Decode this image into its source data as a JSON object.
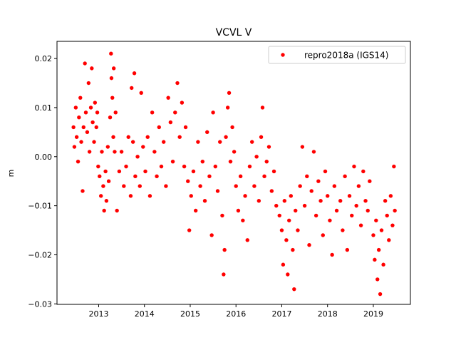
{
  "chart_data": {
    "type": "scatter",
    "title": "VCVL V",
    "xlabel": "",
    "ylabel": "m",
    "xlim": [
      2012.09,
      2019.81
    ],
    "ylim": [
      -0.0301,
      0.0235
    ],
    "xticks": [
      2013,
      2014,
      2015,
      2016,
      2017,
      2018,
      2019
    ],
    "xtick_labels": [
      "2013",
      "2014",
      "2015",
      "2016",
      "2017",
      "2018",
      "2019"
    ],
    "yticks": [
      0.02,
      0.01,
      0.0,
      -0.01,
      -0.02,
      -0.03
    ],
    "ytick_labels": [
      "0.02",
      "0.01",
      "0.00",
      "−0.01",
      "−0.02",
      "−0.03"
    ],
    "grid": false,
    "legend": {
      "placement": "top-right",
      "entries": [
        "repro2018a (IGS14)"
      ]
    },
    "series": [
      {
        "name": "repro2018a (IGS14)",
        "color": "#ff0000",
        "marker": "circle",
        "points": [
          [
            2012.45,
            0.006
          ],
          [
            2012.47,
            0.002
          ],
          [
            2012.5,
            0.01
          ],
          [
            2012.52,
            0.004
          ],
          [
            2012.55,
            -0.001
          ],
          [
            2012.57,
            0.008
          ],
          [
            2012.6,
            0.012
          ],
          [
            2012.62,
            0.003
          ],
          [
            2012.65,
            -0.007
          ],
          [
            2012.67,
            0.006
          ],
          [
            2012.7,
            0.019
          ],
          [
            2012.72,
            0.009
          ],
          [
            2012.75,
            0.005
          ],
          [
            2012.78,
            0.015
          ],
          [
            2012.8,
            0.001
          ],
          [
            2012.83,
            0.01
          ],
          [
            2012.85,
            0.018
          ],
          [
            2012.87,
            0.007
          ],
          [
            2012.9,
            0.003
          ],
          [
            2012.92,
            0.011
          ],
          [
            2012.95,
            0.006
          ],
          [
            2012.97,
            0.009
          ],
          [
            2012.99,
            -0.002
          ],
          [
            2013.02,
            -0.004
          ],
          [
            2013.05,
            -0.008
          ],
          [
            2013.07,
            0.001
          ],
          [
            2013.1,
            -0.006
          ],
          [
            2013.12,
            -0.011
          ],
          [
            2013.15,
            -0.003
          ],
          [
            2013.17,
            -0.009
          ],
          [
            2013.2,
            0.002
          ],
          [
            2013.22,
            -0.005
          ],
          [
            2013.25,
            0.008
          ],
          [
            2013.27,
            0.021
          ],
          [
            2013.28,
            0.016
          ],
          [
            2013.3,
            0.012
          ],
          [
            2013.32,
            0.004
          ],
          [
            2013.33,
            0.018
          ],
          [
            2013.35,
            0.001
          ],
          [
            2013.37,
            0.009
          ],
          [
            2013.4,
            -0.011
          ],
          [
            2013.45,
            -0.003
          ],
          [
            2013.5,
            0.001
          ],
          [
            2013.55,
            -0.006
          ],
          [
            2013.6,
            -0.002
          ],
          [
            2013.65,
            0.004
          ],
          [
            2013.7,
            -0.008
          ],
          [
            2013.72,
            0.014
          ],
          [
            2013.75,
            0.003
          ],
          [
            2013.78,
            0.017
          ],
          [
            2013.8,
            -0.004
          ],
          [
            2013.85,
            0.0
          ],
          [
            2013.9,
            -0.006
          ],
          [
            2013.93,
            0.013
          ],
          [
            2013.97,
            0.002
          ],
          [
            2014.02,
            -0.003
          ],
          [
            2014.07,
            0.004
          ],
          [
            2014.12,
            -0.008
          ],
          [
            2014.17,
            0.009
          ],
          [
            2014.22,
            0.001
          ],
          [
            2014.27,
            -0.004
          ],
          [
            2014.32,
            0.006
          ],
          [
            2014.37,
            -0.002
          ],
          [
            2014.42,
            0.003
          ],
          [
            2014.47,
            -0.006
          ],
          [
            2014.52,
            0.012
          ],
          [
            2014.57,
            0.007
          ],
          [
            2014.62,
            -0.001
          ],
          [
            2014.67,
            0.009
          ],
          [
            2014.72,
            0.015
          ],
          [
            2014.77,
            0.004
          ],
          [
            2014.82,
            0.011
          ],
          [
            2014.87,
            -0.002
          ],
          [
            2014.9,
            0.006
          ],
          [
            2014.95,
            -0.005
          ],
          [
            2014.98,
            -0.015
          ],
          [
            2015.02,
            -0.008
          ],
          [
            2015.07,
            -0.003
          ],
          [
            2015.12,
            -0.011
          ],
          [
            2015.17,
            0.003
          ],
          [
            2015.22,
            -0.006
          ],
          [
            2015.27,
            -0.001
          ],
          [
            2015.32,
            -0.009
          ],
          [
            2015.37,
            0.005
          ],
          [
            2015.42,
            -0.004
          ],
          [
            2015.47,
            -0.016
          ],
          [
            2015.5,
            0.009
          ],
          [
            2015.55,
            -0.002
          ],
          [
            2015.6,
            -0.007
          ],
          [
            2015.65,
            0.003
          ],
          [
            2015.7,
            -0.012
          ],
          [
            2015.73,
            -0.024
          ],
          [
            2015.75,
            -0.019
          ],
          [
            2015.78,
            0.004
          ],
          [
            2015.82,
            0.01
          ],
          [
            2015.85,
            0.013
          ],
          [
            2015.88,
            -0.001
          ],
          [
            2015.92,
            0.006
          ],
          [
            2015.96,
            0.001
          ],
          [
            2016.0,
            -0.006
          ],
          [
            2016.05,
            -0.011
          ],
          [
            2016.1,
            -0.004
          ],
          [
            2016.15,
            -0.013
          ],
          [
            2016.2,
            -0.008
          ],
          [
            2016.25,
            -0.017
          ],
          [
            2016.3,
            -0.002
          ],
          [
            2016.35,
            0.003
          ],
          [
            2016.4,
            -0.006
          ],
          [
            2016.45,
            0.0
          ],
          [
            2016.5,
            -0.009
          ],
          [
            2016.55,
            0.004
          ],
          [
            2016.58,
            0.01
          ],
          [
            2016.62,
            -0.004
          ],
          [
            2016.67,
            -0.001
          ],
          [
            2016.72,
            0.002
          ],
          [
            2016.78,
            -0.007
          ],
          [
            2016.83,
            -0.003
          ],
          [
            2016.88,
            -0.01
          ],
          [
            2016.95,
            -0.012
          ],
          [
            2017.0,
            -0.015
          ],
          [
            2017.03,
            -0.022
          ],
          [
            2017.06,
            -0.009
          ],
          [
            2017.1,
            -0.017
          ],
          [
            2017.13,
            -0.024
          ],
          [
            2017.16,
            -0.013
          ],
          [
            2017.2,
            -0.008
          ],
          [
            2017.24,
            -0.019
          ],
          [
            2017.27,
            -0.027
          ],
          [
            2017.3,
            -0.011
          ],
          [
            2017.35,
            -0.015
          ],
          [
            2017.4,
            -0.006
          ],
          [
            2017.45,
            0.002
          ],
          [
            2017.5,
            -0.01
          ],
          [
            2017.55,
            -0.004
          ],
          [
            2017.6,
            -0.018
          ],
          [
            2017.65,
            -0.007
          ],
          [
            2017.7,
            0.001
          ],
          [
            2017.75,
            -0.012
          ],
          [
            2017.8,
            -0.005
          ],
          [
            2017.85,
            -0.009
          ],
          [
            2017.9,
            -0.016
          ],
          [
            2017.95,
            -0.003
          ],
          [
            2018.0,
            -0.008
          ],
          [
            2018.05,
            -0.013
          ],
          [
            2018.1,
            -0.02
          ],
          [
            2018.15,
            -0.006
          ],
          [
            2018.2,
            -0.011
          ],
          [
            2018.28,
            -0.009
          ],
          [
            2018.33,
            -0.015
          ],
          [
            2018.38,
            -0.004
          ],
          [
            2018.43,
            -0.019
          ],
          [
            2018.48,
            -0.008
          ],
          [
            2018.53,
            -0.012
          ],
          [
            2018.58,
            -0.002
          ],
          [
            2018.63,
            -0.01
          ],
          [
            2018.68,
            -0.006
          ],
          [
            2018.73,
            -0.014
          ],
          [
            2018.78,
            -0.003
          ],
          [
            2018.83,
            -0.009
          ],
          [
            2018.88,
            -0.011
          ],
          [
            2018.92,
            -0.005
          ],
          [
            2019.0,
            -0.016
          ],
          [
            2019.03,
            -0.021
          ],
          [
            2019.06,
            -0.013
          ],
          [
            2019.09,
            -0.025
          ],
          [
            2019.12,
            -0.019
          ],
          [
            2019.15,
            -0.028
          ],
          [
            2019.18,
            -0.015
          ],
          [
            2019.22,
            -0.022
          ],
          [
            2019.26,
            -0.009
          ],
          [
            2019.3,
            -0.012
          ],
          [
            2019.34,
            -0.017
          ],
          [
            2019.38,
            -0.008
          ],
          [
            2019.42,
            -0.014
          ],
          [
            2019.45,
            -0.002
          ],
          [
            2019.47,
            -0.011
          ]
        ]
      }
    ]
  }
}
